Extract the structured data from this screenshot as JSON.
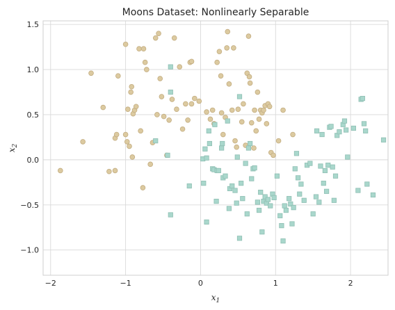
{
  "chart_data": {
    "type": "scatter",
    "title": "Moons Dataset: Nonlinearly Separable",
    "xlabel": "x1",
    "ylabel": "x2",
    "xlabel_base": "x",
    "xlabel_sub": "1",
    "ylabel_base": "x",
    "ylabel_sub": "2",
    "xlim": [
      -2.1,
      2.5
    ],
    "ylim": [
      -1.28,
      1.54
    ],
    "xticks": [
      -2,
      -1,
      0,
      1,
      2
    ],
    "yticks": [
      -1.0,
      -0.5,
      0.0,
      0.5,
      1.0,
      1.5
    ],
    "xtick_labels": [
      "−2",
      "−1",
      "0",
      "1",
      "2"
    ],
    "ytick_labels": [
      "−1.0",
      "−0.5",
      "0.0",
      "0.5",
      "1.0",
      "1.5"
    ],
    "grid": true,
    "series": [
      {
        "marker": "circle",
        "color": "#dccaa0",
        "edge": "#c2ac80",
        "points": [
          [
            -1.87,
            -0.12
          ],
          [
            -1.57,
            0.2
          ],
          [
            -1.46,
            0.96
          ],
          [
            -1.3,
            0.58
          ],
          [
            -1.22,
            -0.13
          ],
          [
            -1.14,
            -0.12
          ],
          [
            -1.14,
            0.24
          ],
          [
            -1.12,
            0.28
          ],
          [
            -1.1,
            0.93
          ],
          [
            -1.0,
            1.28
          ],
          [
            -1.0,
            0.28
          ],
          [
            -0.98,
            0.2
          ],
          [
            -0.97,
            0.56
          ],
          [
            -0.95,
            0.15
          ],
          [
            -0.93,
            0.75
          ],
          [
            -0.92,
            0.81
          ],
          [
            -0.91,
            0.03
          ],
          [
            -0.9,
            0.51
          ],
          [
            -0.88,
            0.55
          ],
          [
            -0.86,
            0.59
          ],
          [
            -0.82,
            1.23
          ],
          [
            -0.8,
            0.32
          ],
          [
            -0.77,
            -0.31
          ],
          [
            -0.76,
            1.23
          ],
          [
            -0.74,
            1.08
          ],
          [
            -0.72,
            1.0
          ],
          [
            -0.67,
            -0.05
          ],
          [
            -0.64,
            0.19
          ],
          [
            -0.6,
            1.35
          ],
          [
            -0.58,
            0.5
          ],
          [
            -0.56,
            1.4
          ],
          [
            -0.54,
            0.9
          ],
          [
            -0.52,
            0.7
          ],
          [
            -0.49,
            0.48
          ],
          [
            -0.45,
            0.05
          ],
          [
            -0.42,
            0.44
          ],
          [
            -0.38,
            0.67
          ],
          [
            -0.35,
            1.35
          ],
          [
            -0.32,
            0.56
          ],
          [
            -0.28,
            1.03
          ],
          [
            -0.24,
            0.34
          ],
          [
            -0.2,
            0.62
          ],
          [
            -0.17,
            0.44
          ],
          [
            -0.14,
            1.08
          ],
          [
            -0.12,
            1.09
          ],
          [
            -0.12,
            0.62
          ],
          [
            -0.08,
            0.68
          ],
          [
            -0.02,
            0.65
          ],
          [
            0.08,
            0.53
          ],
          [
            0.13,
            0.45
          ],
          [
            0.16,
            0.55
          ],
          [
            0.18,
            0.4
          ],
          [
            0.22,
            1.08
          ],
          [
            0.25,
            1.2
          ],
          [
            0.27,
            0.93
          ],
          [
            0.28,
            0.52
          ],
          [
            0.3,
            0.28
          ],
          [
            0.33,
            0.47
          ],
          [
            0.35,
            1.24
          ],
          [
            0.36,
            1.42
          ],
          [
            0.38,
            0.84
          ],
          [
            0.42,
            0.55
          ],
          [
            0.44,
            1.24
          ],
          [
            0.46,
            0.21
          ],
          [
            0.48,
            0.14
          ],
          [
            0.5,
            0.56
          ],
          [
            0.55,
            0.42
          ],
          [
            0.57,
            0.62
          ],
          [
            0.6,
            0.16
          ],
          [
            0.62,
            0.96
          ],
          [
            0.64,
            1.37
          ],
          [
            0.65,
            0.92
          ],
          [
            0.66,
            0.85
          ],
          [
            0.68,
            0.41
          ],
          [
            0.71,
            0.13
          ],
          [
            0.72,
            0.55
          ],
          [
            0.74,
            0.32
          ],
          [
            0.76,
            0.75
          ],
          [
            0.78,
            0.45
          ],
          [
            0.8,
            0.55
          ],
          [
            0.82,
            0.52
          ],
          [
            0.84,
            0.55
          ],
          [
            0.86,
            0.6
          ],
          [
            0.88,
            0.4
          ],
          [
            0.9,
            0.62
          ],
          [
            0.92,
            0.59
          ],
          [
            0.94,
            0.08
          ],
          [
            0.97,
            0.05
          ],
          [
            1.04,
            0.21
          ],
          [
            1.1,
            0.55
          ],
          [
            1.23,
            0.28
          ]
        ]
      },
      {
        "marker": "square",
        "color": "#a9d7cc",
        "edge": "#8fbfb3",
        "points": [
          [
            -0.6,
            0.21
          ],
          [
            -0.44,
            0.05
          ],
          [
            -0.4,
            -0.61
          ],
          [
            -0.4,
            1.03
          ],
          [
            -0.4,
            0.75
          ],
          [
            -0.15,
            -0.29
          ],
          [
            0.03,
            0.01
          ],
          [
            0.06,
            0.12
          ],
          [
            0.04,
            -0.26
          ],
          [
            0.08,
            0.02
          ],
          [
            0.08,
            -0.69
          ],
          [
            0.11,
            0.32
          ],
          [
            0.12,
            0.18
          ],
          [
            0.16,
            -0.1
          ],
          [
            0.18,
            -0.11
          ],
          [
            0.19,
            0.39
          ],
          [
            0.21,
            -0.46
          ],
          [
            0.22,
            -0.12
          ],
          [
            0.24,
            -0.12
          ],
          [
            0.28,
            0.13
          ],
          [
            0.29,
            0.18
          ],
          [
            0.3,
            -0.2
          ],
          [
            0.33,
            -0.18
          ],
          [
            0.36,
            0.43
          ],
          [
            0.38,
            -0.54
          ],
          [
            0.39,
            -0.32
          ],
          [
            0.42,
            -0.29
          ],
          [
            0.46,
            -0.34
          ],
          [
            0.48,
            -0.48
          ],
          [
            0.49,
            0.03
          ],
          [
            0.52,
            -0.87
          ],
          [
            0.52,
            0.7
          ],
          [
            0.54,
            -0.26
          ],
          [
            0.56,
            -0.43
          ],
          [
            0.6,
            -0.04
          ],
          [
            0.62,
            -0.6
          ],
          [
            0.64,
            0.13
          ],
          [
            0.66,
            0.18
          ],
          [
            0.68,
            -0.21
          ],
          [
            0.7,
            -0.1
          ],
          [
            0.72,
            -0.09
          ],
          [
            0.76,
            -0.47
          ],
          [
            0.78,
            -0.56
          ],
          [
            0.8,
            -0.36
          ],
          [
            0.82,
            -0.8
          ],
          [
            0.84,
            -0.46
          ],
          [
            0.86,
            -0.41
          ],
          [
            0.88,
            -0.48
          ],
          [
            0.9,
            -0.44
          ],
          [
            0.93,
            -0.51
          ],
          [
            0.96,
            -0.38
          ],
          [
            0.98,
            -0.42
          ],
          [
            1.02,
            -0.18
          ],
          [
            1.06,
            -0.62
          ],
          [
            1.08,
            -0.73
          ],
          [
            1.1,
            -0.9
          ],
          [
            1.12,
            -0.51
          ],
          [
            1.14,
            -0.56
          ],
          [
            1.18,
            -0.43
          ],
          [
            1.2,
            -0.49
          ],
          [
            1.22,
            -0.71
          ],
          [
            1.24,
            -0.53
          ],
          [
            1.26,
            -0.1
          ],
          [
            1.28,
            0.07
          ],
          [
            1.3,
            -0.2
          ],
          [
            1.32,
            -0.38
          ],
          [
            1.34,
            -0.27
          ],
          [
            1.38,
            -0.45
          ],
          [
            1.42,
            -0.06
          ],
          [
            1.46,
            -0.04
          ],
          [
            1.5,
            -0.6
          ],
          [
            1.54,
            -0.41
          ],
          [
            1.55,
            0.32
          ],
          [
            1.58,
            -0.47
          ],
          [
            1.6,
            -0.07
          ],
          [
            1.62,
            0.28
          ],
          [
            1.64,
            -0.26
          ],
          [
            1.66,
            -0.12
          ],
          [
            1.68,
            -0.35
          ],
          [
            1.7,
            -0.06
          ],
          [
            1.72,
            0.36
          ],
          [
            1.74,
            0.37
          ],
          [
            1.76,
            -0.08
          ],
          [
            1.78,
            -0.45
          ],
          [
            1.8,
            -0.18
          ],
          [
            1.82,
            0.27
          ],
          [
            1.85,
            0.31
          ],
          [
            1.9,
            0.39
          ],
          [
            1.92,
            0.43
          ],
          [
            1.94,
            0.33
          ],
          [
            1.96,
            0.03
          ],
          [
            2.04,
            0.35
          ],
          [
            2.1,
            -0.34
          ],
          [
            2.14,
            0.67
          ],
          [
            2.16,
            0.68
          ],
          [
            2.18,
            0.4
          ],
          [
            2.2,
            0.32
          ],
          [
            2.22,
            -0.27
          ],
          [
            2.3,
            -0.39
          ],
          [
            2.44,
            0.22
          ]
        ]
      }
    ]
  }
}
